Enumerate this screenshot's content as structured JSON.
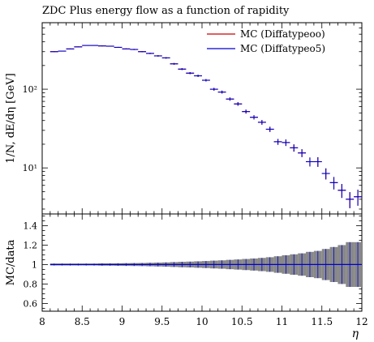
{
  "chart_data": [
    {
      "type": "scatter",
      "panel": "main",
      "title": "ZDC Plus energy flow as a function of rapidity",
      "ylabel": "1/N, dE/dη [GeV]",
      "yscale": "log",
      "ylim": [
        2.6,
        700
      ],
      "xlim": [
        8,
        12
      ],
      "y_tick_labels": [
        "10¹",
        "10²"
      ],
      "y_tick_values": [
        10,
        100
      ],
      "legend_position": "top-right",
      "series": [
        {
          "name": "MC (Diffatypeoo)",
          "color": "#cc0000",
          "x": [
            8.15,
            8.25,
            8.35,
            8.45,
            8.55,
            8.65,
            8.75,
            8.85,
            8.95,
            9.05,
            9.15,
            9.25,
            9.35,
            9.45,
            9.55,
            9.65,
            9.75,
            9.85,
            9.95,
            10.05,
            10.15,
            10.25,
            10.35,
            10.45,
            10.55,
            10.65,
            10.75,
            10.85,
            10.95,
            11.05,
            11.15,
            11.25,
            11.35,
            11.45,
            11.55,
            11.65,
            11.75,
            11.85,
            11.95
          ],
          "y": [
            300,
            305,
            325,
            345,
            360,
            360,
            355,
            352,
            340,
            325,
            320,
            300,
            285,
            265,
            250,
            210,
            180,
            160,
            148,
            130,
            100,
            92,
            75,
            65,
            52,
            44,
            38,
            31,
            21.5,
            21,
            18,
            15.5,
            12,
            12,
            8.5,
            6.5,
            5.2,
            4,
            4.3
          ]
        },
        {
          "name": "MC (Diffatypeo5)",
          "color": "#0000cc",
          "x": [
            8.15,
            8.25,
            8.35,
            8.45,
            8.55,
            8.65,
            8.75,
            8.85,
            8.95,
            9.05,
            9.15,
            9.25,
            9.35,
            9.45,
            9.55,
            9.65,
            9.75,
            9.85,
            9.95,
            10.05,
            10.15,
            10.25,
            10.35,
            10.45,
            10.55,
            10.65,
            10.75,
            10.85,
            10.95,
            11.05,
            11.15,
            11.25,
            11.35,
            11.45,
            11.55,
            11.65,
            11.75,
            11.85,
            11.95
          ],
          "y": [
            300,
            305,
            325,
            345,
            360,
            360,
            355,
            352,
            340,
            325,
            320,
            300,
            285,
            265,
            250,
            210,
            180,
            160,
            148,
            130,
            100,
            92,
            75,
            65,
            52,
            44,
            38,
            31,
            21.5,
            21,
            18,
            15.5,
            12,
            12,
            8.5,
            6.5,
            5.2,
            4,
            4.3
          ]
        }
      ]
    },
    {
      "type": "bar",
      "panel": "ratio",
      "ylabel": "MC/data",
      "xlabel": "η",
      "ylim": [
        0.52,
        1.52
      ],
      "xlim": [
        8,
        12
      ],
      "x_tick_labels": [
        "8",
        "8.5",
        "9",
        "9.5",
        "10",
        "10.5",
        "11",
        "11.5",
        "12"
      ],
      "x_tick_values": [
        8,
        8.5,
        9,
        9.5,
        10,
        10.5,
        11,
        11.5,
        12
      ],
      "y_tick_labels": [
        "0.6",
        "0.8",
        "1",
        "1.2",
        "1.4"
      ],
      "y_tick_values": [
        0.6,
        0.8,
        1.0,
        1.2,
        1.4
      ],
      "band_color": "#888888",
      "ratio_line_color": "#0000cc",
      "x": [
        8.15,
        8.25,
        8.35,
        8.45,
        8.55,
        8.65,
        8.75,
        8.85,
        8.95,
        9.05,
        9.15,
        9.25,
        9.35,
        9.45,
        9.55,
        9.65,
        9.75,
        9.85,
        9.95,
        10.05,
        10.15,
        10.25,
        10.35,
        10.45,
        10.55,
        10.65,
        10.75,
        10.85,
        10.95,
        11.05,
        11.15,
        11.25,
        11.35,
        11.45,
        11.55,
        11.65,
        11.75,
        11.85,
        11.95
      ],
      "ratio": [
        1,
        1,
        1,
        1,
        1,
        1,
        1,
        1,
        1,
        1,
        1,
        1,
        1,
        1,
        1,
        1,
        1,
        1,
        1,
        1,
        1,
        1,
        1,
        1,
        1,
        1,
        1,
        1,
        1,
        1,
        1,
        1,
        1,
        1,
        1,
        1,
        1,
        1,
        1
      ],
      "band_halfwidth": [
        0.01,
        0.01,
        0.01,
        0.01,
        0.01,
        0.01,
        0.012,
        0.012,
        0.013,
        0.014,
        0.015,
        0.016,
        0.018,
        0.02,
        0.022,
        0.025,
        0.028,
        0.03,
        0.033,
        0.036,
        0.04,
        0.043,
        0.048,
        0.052,
        0.057,
        0.062,
        0.068,
        0.075,
        0.085,
        0.095,
        0.105,
        0.115,
        0.13,
        0.14,
        0.16,
        0.18,
        0.2,
        0.23,
        0.23
      ]
    }
  ]
}
